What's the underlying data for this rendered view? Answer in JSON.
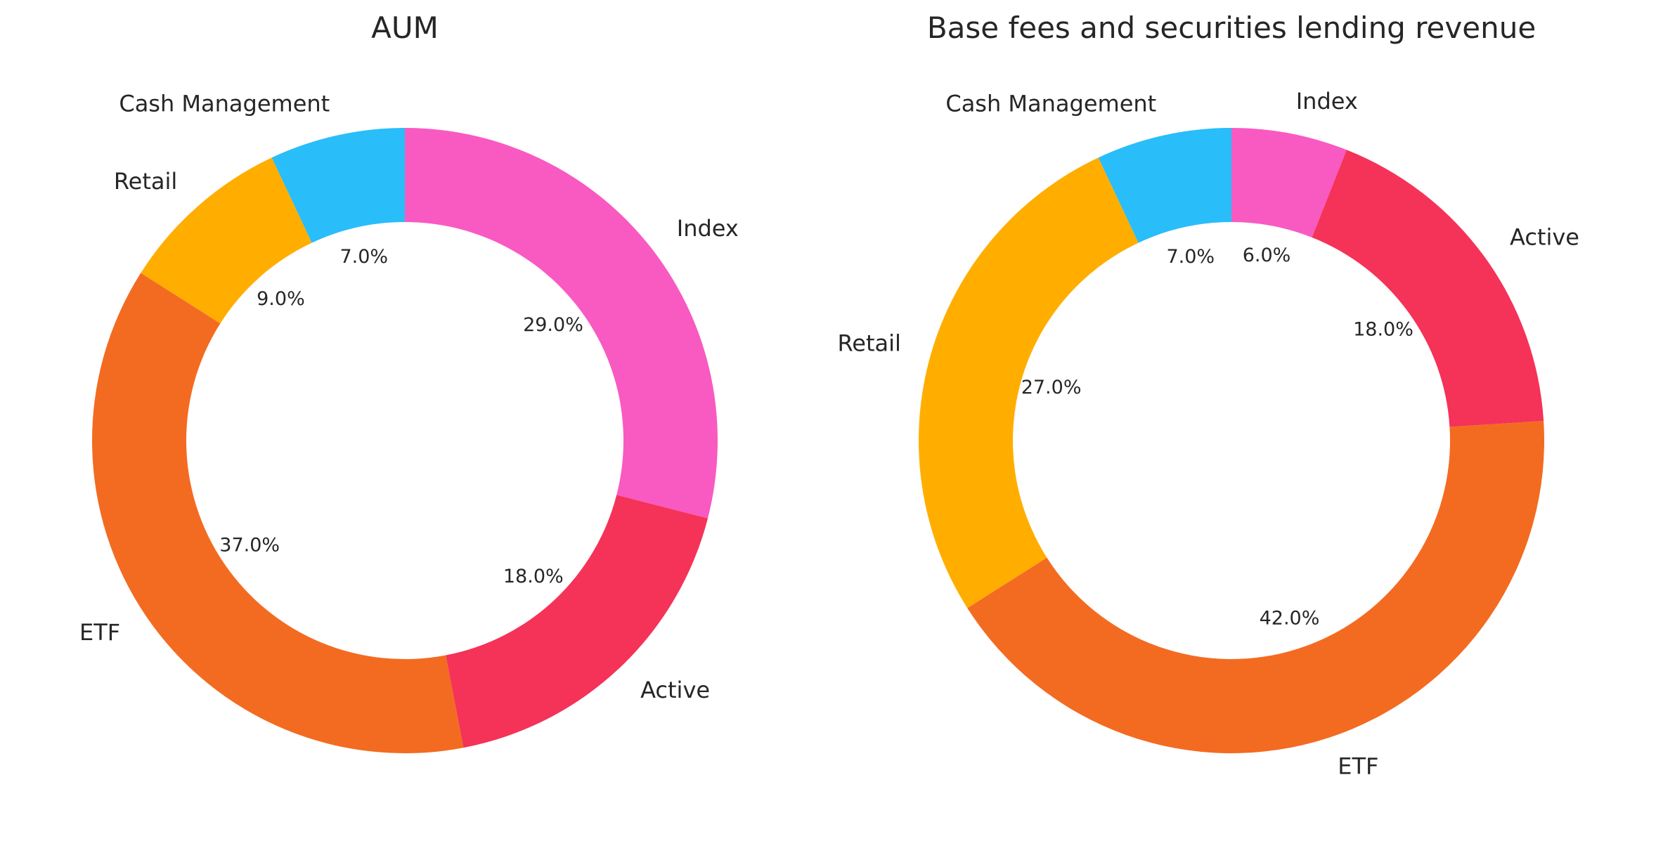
{
  "chart_data": [
    {
      "type": "pie",
      "style": "donut",
      "title": "AUM",
      "start": "top",
      "direction": "counterclockwise",
      "slices": [
        {
          "label": "Cash Management",
          "value": 7.0,
          "pct": "7.0%",
          "color": "#29BDF9"
        },
        {
          "label": "Retail",
          "value": 9.0,
          "pct": "9.0%",
          "color": "#FFAE00"
        },
        {
          "label": "ETF",
          "value": 37.0,
          "pct": "37.0%",
          "color": "#F36B21"
        },
        {
          "label": "Active",
          "value": 18.0,
          "pct": "18.0%",
          "color": "#F53258"
        },
        {
          "label": "Index",
          "value": 29.0,
          "pct": "29.0%",
          "color": "#F85AC2"
        }
      ]
    },
    {
      "type": "pie",
      "style": "donut",
      "title": "Base fees and securities lending revenue",
      "start": "top",
      "direction": "counterclockwise",
      "slices": [
        {
          "label": "Cash Management",
          "value": 7.0,
          "pct": "7.0%",
          "color": "#29BDF9"
        },
        {
          "label": "Retail",
          "value": 27.0,
          "pct": "27.0%",
          "color": "#FFAE00"
        },
        {
          "label": "ETF",
          "value": 42.0,
          "pct": "42.0%",
          "color": "#F36B21"
        },
        {
          "label": "Active",
          "value": 18.0,
          "pct": "18.0%",
          "color": "#F53258"
        },
        {
          "label": "Index",
          "value": 6.0,
          "pct": "6.0%",
          "color": "#F85AC2"
        }
      ]
    }
  ]
}
